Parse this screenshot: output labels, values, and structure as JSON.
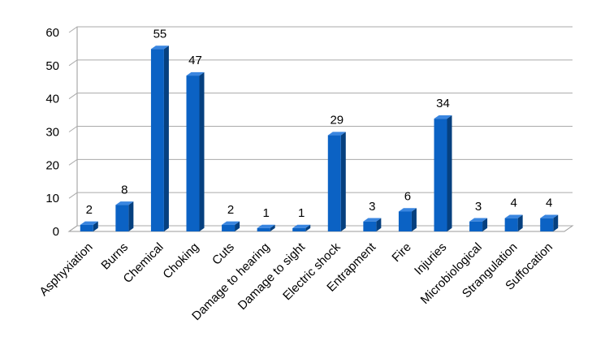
{
  "chart_data": {
    "type": "bar",
    "categories": [
      "Asphyxiation",
      "Burns",
      "Chemical",
      "Choking",
      "Cuts",
      "Damage to hearing",
      "Damage to sight",
      "Electric shock",
      "Entrapment",
      "Fire",
      "Injuries",
      "Microbiological",
      "Strangulation",
      "Suffocation"
    ],
    "values": [
      2,
      8,
      55,
      47,
      2,
      1,
      1,
      29,
      3,
      6,
      34,
      3,
      4,
      4
    ],
    "color": "#0b62c4",
    "ylim": [
      0,
      60
    ],
    "yticks": [
      0,
      10,
      20,
      30,
      40,
      50,
      60
    ],
    "grid": true,
    "data_labels": true
  }
}
